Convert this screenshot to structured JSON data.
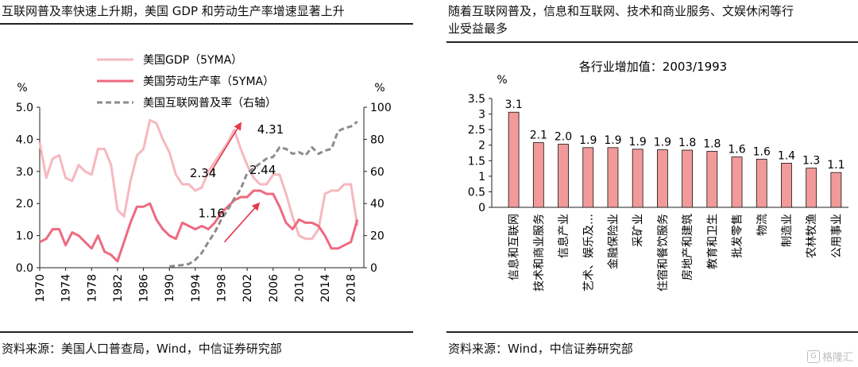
{
  "left_panel": {
    "title": "互联网普及率快速上升期，美国 GDP 和劳动生产率增速显著上升",
    "source": "资料来源：美国人口普查局，Wind，中信证券研究部"
  },
  "right_panel": {
    "title_line1": "随着互联网普及，信息和互联网、技术和商业服务、文娱休闲等行",
    "title_line2": "业受益最多",
    "source": "资料来源：Wind，中信证券研究部"
  },
  "watermark": {
    "text": "格隆汇",
    "icon": "logo-icon"
  },
  "chart_data": [
    {
      "type": "line",
      "xlim": [
        1970,
        2020
      ],
      "x_ticks": [
        "1970",
        "1974",
        "1978",
        "1982",
        "1986",
        "1990",
        "1994",
        "1998",
        "2002",
        "2006",
        "2010",
        "2014",
        "2018"
      ],
      "left_axis": {
        "unit": "%",
        "ylim": [
          0,
          5
        ],
        "ticks": [
          "0.0",
          "1.0",
          "2.0",
          "3.0",
          "4.0",
          "5.0"
        ]
      },
      "right_axis": {
        "unit": "%",
        "ylim": [
          0,
          100
        ],
        "ticks": [
          "0",
          "20",
          "40",
          "60",
          "80",
          "100"
        ]
      },
      "legend_position": "top-left",
      "series": [
        {
          "name": "美国GDP（5YMA）",
          "axis": "left",
          "color": "#f6b8bf",
          "dash": false,
          "x": [
            1970,
            1971,
            1972,
            1973,
            1974,
            1975,
            1976,
            1977,
            1978,
            1979,
            1980,
            1981,
            1982,
            1983,
            1984,
            1985,
            1986,
            1987,
            1988,
            1989,
            1990,
            1991,
            1992,
            1993,
            1994,
            1995,
            1996,
            1997,
            1998,
            1999,
            2000,
            2001,
            2002,
            2003,
            2004,
            2005,
            2006,
            2007,
            2008,
            2009,
            2010,
            2011,
            2012,
            2013,
            2014,
            2015,
            2016,
            2017,
            2018,
            2019
          ],
          "y": [
            3.9,
            2.8,
            3.4,
            3.5,
            2.8,
            2.7,
            3.2,
            3.0,
            2.9,
            3.7,
            3.7,
            3.2,
            1.8,
            1.6,
            2.7,
            3.5,
            3.7,
            4.6,
            4.5,
            4.0,
            3.6,
            2.9,
            2.6,
            2.6,
            2.4,
            2.5,
            3.0,
            3.3,
            3.6,
            3.9,
            4.3,
            3.7,
            3.2,
            2.8,
            2.6,
            2.6,
            2.9,
            2.9,
            2.3,
            1.6,
            1.0,
            0.9,
            0.9,
            1.2,
            2.3,
            2.4,
            2.4,
            2.6,
            2.6,
            1.3
          ]
        },
        {
          "name": "美国劳动生产率（5YMA）",
          "axis": "left",
          "color": "#ee6a80",
          "dash": false,
          "x": [
            1970,
            1971,
            1972,
            1973,
            1974,
            1975,
            1976,
            1977,
            1978,
            1979,
            1980,
            1981,
            1982,
            1983,
            1984,
            1985,
            1986,
            1987,
            1988,
            1989,
            1990,
            1991,
            1992,
            1993,
            1994,
            1995,
            1996,
            1997,
            1998,
            1999,
            2000,
            2001,
            2002,
            2003,
            2004,
            2005,
            2006,
            2007,
            2008,
            2009,
            2010,
            2011,
            2012,
            2013,
            2014,
            2015,
            2016,
            2017,
            2018,
            2019
          ],
          "y": [
            0.8,
            0.9,
            1.2,
            1.2,
            0.7,
            1.1,
            1.0,
            0.8,
            0.6,
            1.0,
            0.5,
            0.4,
            0.2,
            0.8,
            1.4,
            1.9,
            1.9,
            2.0,
            1.5,
            1.2,
            1.0,
            0.9,
            1.4,
            1.3,
            1.2,
            1.3,
            1.2,
            1.4,
            1.7,
            1.9,
            2.1,
            2.2,
            2.2,
            2.4,
            2.4,
            2.3,
            2.3,
            1.9,
            1.4,
            1.2,
            1.5,
            1.4,
            1.4,
            1.3,
            1.0,
            0.6,
            0.6,
            0.7,
            0.8,
            1.5
          ]
        },
        {
          "name": "美国互联网普及率（右轴）",
          "axis": "right",
          "color": "#8c8c8c",
          "dash": true,
          "x": [
            1990,
            1991,
            1992,
            1993,
            1994,
            1995,
            1996,
            1997,
            1998,
            1999,
            2000,
            2001,
            2002,
            2003,
            2004,
            2005,
            2006,
            2007,
            2008,
            2009,
            2010,
            2011,
            2012,
            2013,
            2014,
            2015,
            2016,
            2017,
            2018,
            2019
          ],
          "y": [
            0.8,
            1.2,
            1.7,
            2.3,
            4.9,
            9.2,
            16,
            22,
            30,
            36,
            43,
            49,
            59,
            62,
            65,
            68,
            69,
            75,
            74,
            71,
            72,
            70,
            75,
            71,
            73,
            74,
            85,
            87,
            88,
            91
          ]
        }
      ],
      "annotations": [
        {
          "text": "2.34",
          "x": 1995.2,
          "y": 2.95,
          "axis": "left"
        },
        {
          "text": "4.31",
          "x": 2005.6,
          "y": 4.31,
          "axis": "left"
        },
        {
          "text": "1.16",
          "x": 1996.5,
          "y": 1.7,
          "axis": "left"
        },
        {
          "text": "2.44",
          "x": 2004.4,
          "y": 3.05,
          "axis": "left"
        }
      ],
      "arrows": [
        {
          "from_x": 1996.3,
          "from_y": 2.95,
          "to_x": 2001.0,
          "to_y": 4.5,
          "color": "#e53a4b"
        },
        {
          "from_x": 1998.5,
          "from_y": 0.8,
          "to_x": 2003.8,
          "to_y": 2.0,
          "color": "#e53a4b"
        }
      ]
    },
    {
      "type": "bar",
      "title": "各行业增加值：2003/1993",
      "ylabel": "%",
      "ylim": [
        0,
        3.5
      ],
      "y_ticks": [
        "0",
        "0.5",
        "1",
        "1.5",
        "2",
        "2.5",
        "3",
        "3.5"
      ],
      "bar_color": "#f29a9a",
      "bar_edge": "#111111",
      "categories": [
        "信息和互联网",
        "技术和商业服务",
        "信息产业",
        "艺术、娱乐及…",
        "金融保险业",
        "采矿业",
        "住宿和餐饮服务",
        "房地产和建筑",
        "教育和卫生",
        "批发零售",
        "物流",
        "制造业",
        "农林牧渔",
        "公用事业"
      ],
      "values": [
        3.06,
        2.08,
        2.03,
        1.92,
        1.92,
        1.87,
        1.85,
        1.84,
        1.8,
        1.62,
        1.55,
        1.42,
        1.26,
        1.12
      ],
      "data_labels": [
        "3.1",
        "2.1",
        "2.0",
        "1.9",
        "1.9",
        "1.9",
        "1.9",
        "1.8",
        "1.8",
        "1.6",
        "1.6",
        "1.4",
        "1.3",
        "1.1"
      ]
    }
  ]
}
